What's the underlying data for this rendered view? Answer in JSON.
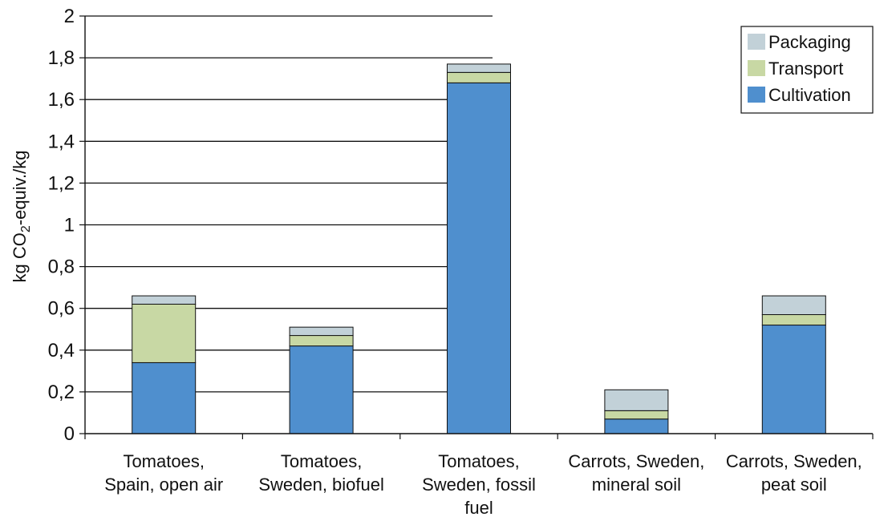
{
  "chart_data": {
    "type": "bar",
    "stacked": true,
    "ylabel": "kg CO₂-equiv./kg",
    "ylim": [
      0,
      2
    ],
    "yticks": [
      "0",
      "0,2",
      "0,4",
      "0,6",
      "0,8",
      "1",
      "1,2",
      "1,4",
      "1,6",
      "1,8",
      "2"
    ],
    "ytick_values": [
      0,
      0.2,
      0.4,
      0.6,
      0.8,
      1.0,
      1.2,
      1.4,
      1.6,
      1.8,
      2.0
    ],
    "categories": [
      "Tomatoes, Spain, open air",
      "Tomatoes, Sweden, biofuel",
      "Tomatoes, Sweden, fossil fuel",
      "Carrots, Sweden, mineral soil",
      "Carrots, Sweden, peat soil"
    ],
    "category_lines": [
      [
        "Tomatoes,",
        "Spain, open air"
      ],
      [
        "Tomatoes,",
        "Sweden, biofuel"
      ],
      [
        "Tomatoes,",
        "Sweden, fossil",
        "fuel"
      ],
      [
        "Carrots, Sweden,",
        "mineral soil"
      ],
      [
        "Carrots, Sweden,",
        "peat soil"
      ]
    ],
    "series": [
      {
        "name": "Cultivation",
        "color": "#4f8fce",
        "values": [
          0.34,
          0.42,
          1.68,
          0.07,
          0.52
        ]
      },
      {
        "name": "Transport",
        "color": "#c8d8a4",
        "values": [
          0.28,
          0.05,
          0.05,
          0.04,
          0.05
        ]
      },
      {
        "name": "Packaging",
        "color": "#c2d1d8",
        "values": [
          0.04,
          0.04,
          0.04,
          0.1,
          0.09
        ]
      }
    ],
    "legend_order": [
      "Packaging",
      "Transport",
      "Cultivation"
    ],
    "legend_position": "top-right",
    "grid": "horizontal"
  }
}
